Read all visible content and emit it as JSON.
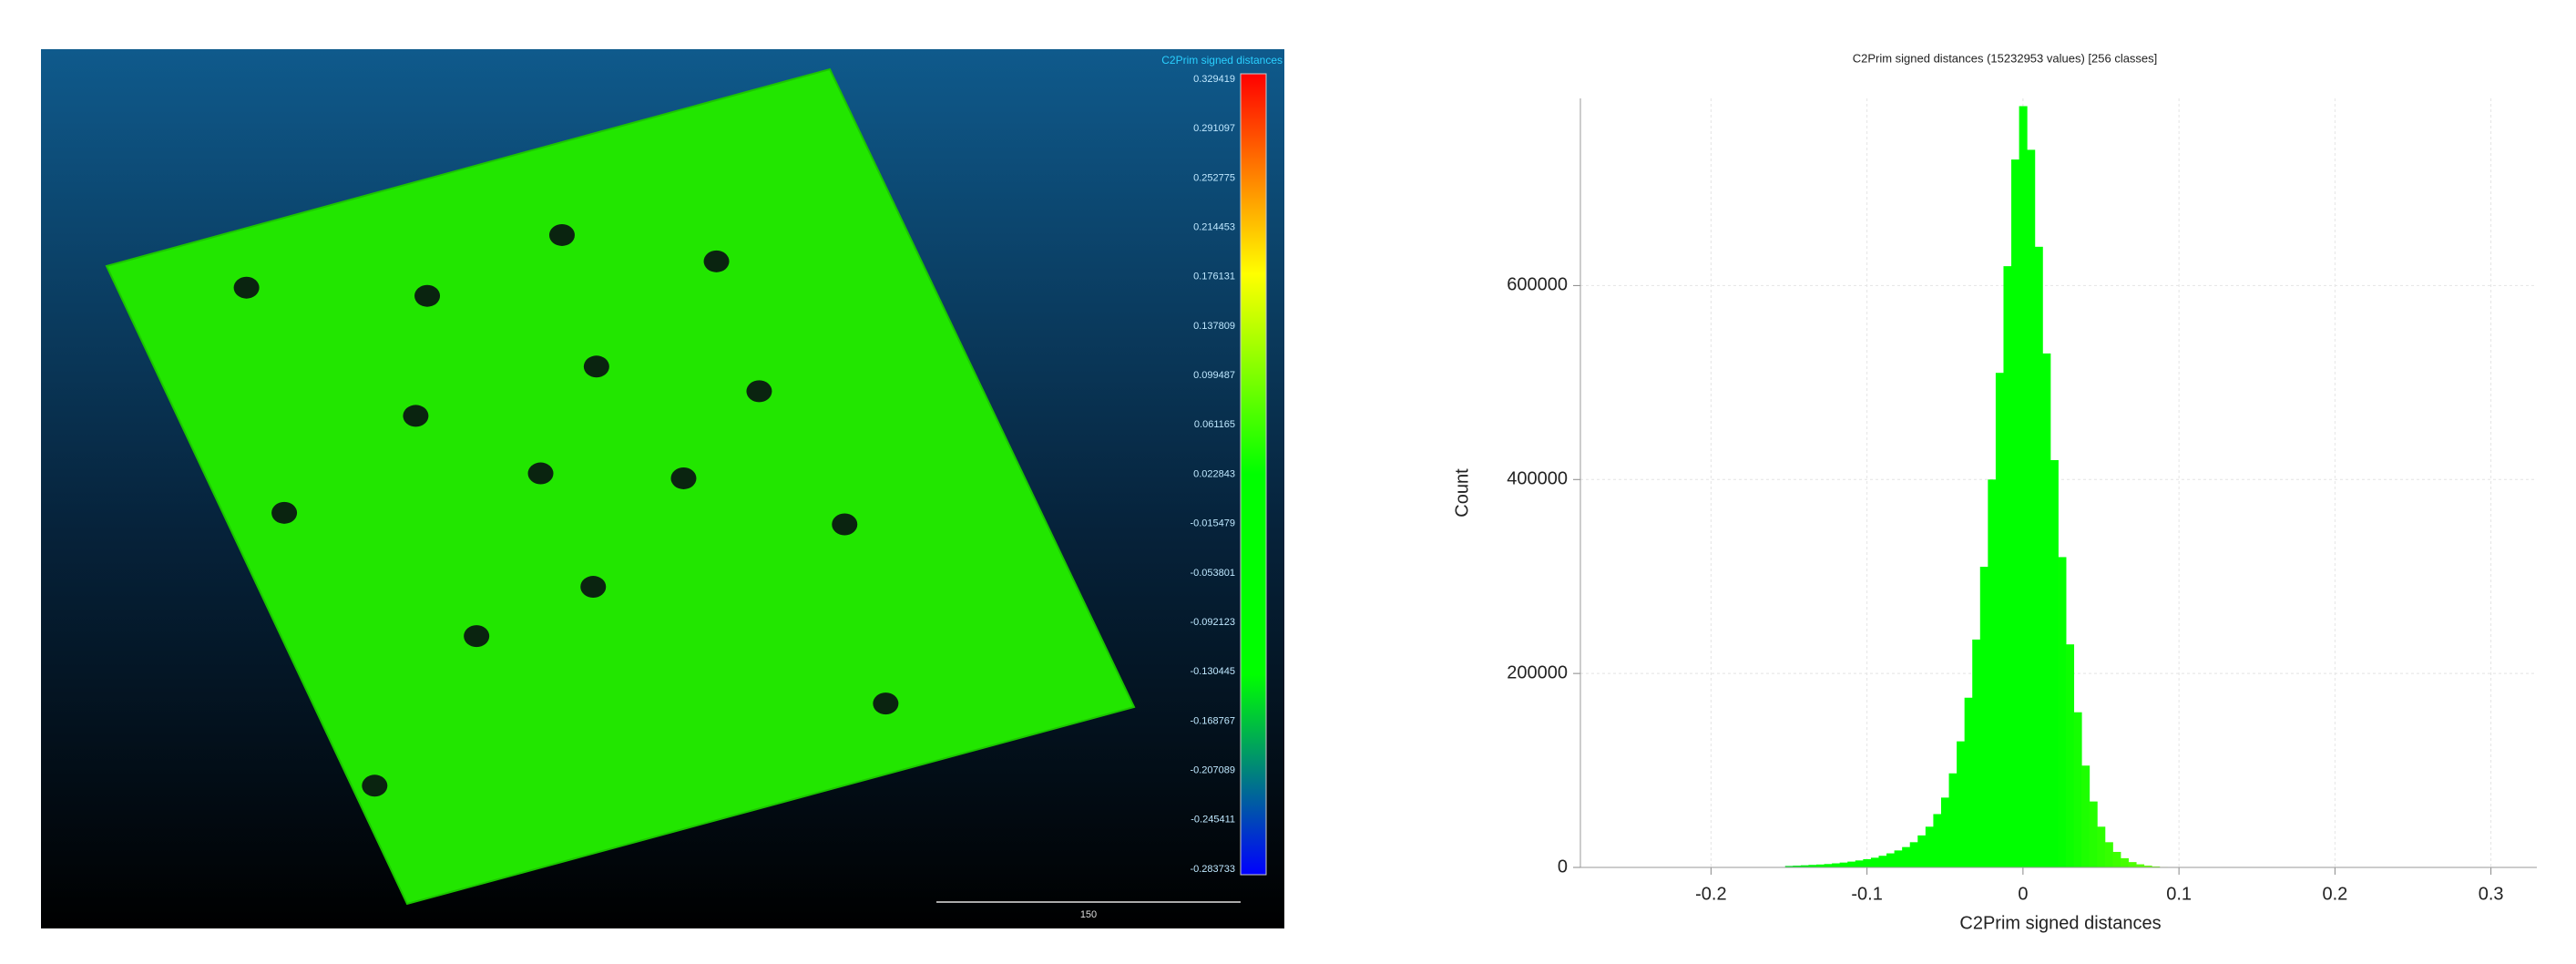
{
  "viewer": {
    "scale_title": "C2Prim signed distances",
    "scale_labels": [
      "0.329419",
      "0.291097",
      "0.252775",
      "0.214453",
      "0.176131",
      "0.137809",
      "0.099487",
      "0.061165",
      "0.022843",
      "-0.015479",
      "-0.053801",
      "-0.092123",
      "-0.130445",
      "-0.168767",
      "-0.207089",
      "-0.245411",
      "-0.283733"
    ],
    "scale_bar_label": "150"
  },
  "chart_data": {
    "type": "bar",
    "title": "C2Prim signed distances (15232953 values)  [256 classes]",
    "x_label": "C2Prim signed distances",
    "y_label": "Count",
    "x": [
      -0.15,
      -0.145,
      -0.14,
      -0.135,
      -0.13,
      -0.125,
      -0.12,
      -0.115,
      -0.11,
      -0.105,
      -0.1,
      -0.095,
      -0.09,
      -0.085,
      -0.08,
      -0.075,
      -0.07,
      -0.065,
      -0.06,
      -0.055,
      -0.05,
      -0.045,
      -0.04,
      -0.035,
      -0.03,
      -0.025,
      -0.02,
      -0.015,
      -0.01,
      -0.005,
      0,
      0.005,
      0.01,
      0.015,
      0.02,
      0.025,
      0.03,
      0.035,
      0.04,
      0.045,
      0.05,
      0.055,
      0.06,
      0.065,
      0.07,
      0.075,
      0.08,
      0.085,
      0.09,
      0.095,
      0.1
    ],
    "values": [
      1500,
      1800,
      2200,
      2600,
      3000,
      3500,
      4200,
      5000,
      6000,
      7200,
      8500,
      10000,
      12000,
      14500,
      17500,
      21000,
      26000,
      33000,
      42000,
      55000,
      72000,
      97000,
      130000,
      175000,
      235000,
      310000,
      400000,
      510000,
      620000,
      730000,
      785000,
      740000,
      640000,
      530000,
      420000,
      320000,
      230000,
      160000,
      105000,
      68000,
      42000,
      26000,
      16000,
      9500,
      5500,
      3200,
      1800,
      1000,
      500,
      250,
      100
    ],
    "colorscale": [
      "#0000ff",
      "#00ff00",
      "#00ff00",
      "#ffff00",
      "#ff0000"
    ],
    "xlim": [
      -0.283733,
      0.329419
    ],
    "ylim": [
      0,
      793000
    ],
    "xticks": [
      -0.2,
      -0.1,
      0,
      0.1,
      0.2,
      0.3
    ],
    "yticks": [
      0,
      200000,
      400000,
      600000
    ],
    "grid": true
  }
}
